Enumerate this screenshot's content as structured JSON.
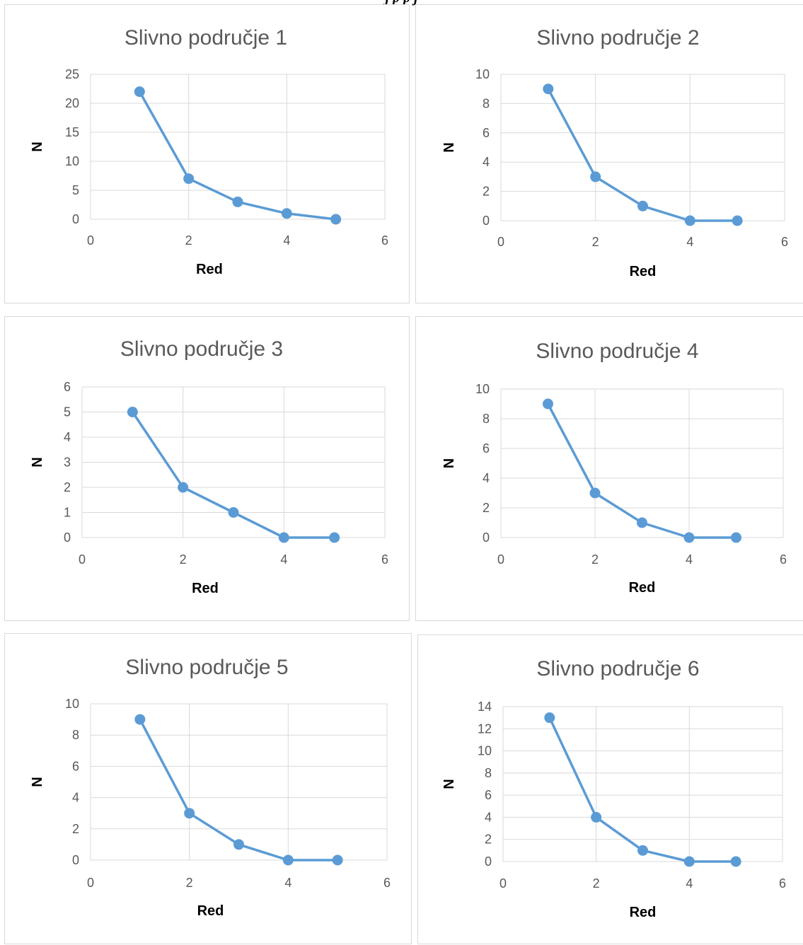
{
  "figure": {
    "caption_fragment": "j       p               p     j"
  },
  "theme": {
    "series_color": "#5b9bd5",
    "grid_color": "#d9d9d9",
    "text_color": "#595959",
    "panel_border_color": "#d9d9d9"
  },
  "chart_data": [
    {
      "type": "scatter",
      "title": "Slivno područje 1",
      "xlabel": "Red",
      "ylabel": "N",
      "x": [
        1,
        2,
        3,
        4,
        5
      ],
      "series": [
        {
          "values": [
            22,
            7,
            3,
            1,
            0
          ]
        }
      ],
      "xlim": [
        0,
        6
      ],
      "ylim": [
        0,
        25
      ],
      "xticks": [
        0,
        2,
        4,
        6
      ],
      "yticks": [
        0,
        5,
        10,
        15,
        20,
        25
      ],
      "grid": true,
      "lines": true,
      "markers": true
    },
    {
      "type": "scatter",
      "title": "Slivno područje 2",
      "xlabel": "Red",
      "ylabel": "N",
      "x": [
        1,
        2,
        3,
        4,
        5
      ],
      "series": [
        {
          "values": [
            9,
            3,
            1,
            0,
            0
          ]
        }
      ],
      "xlim": [
        0,
        6
      ],
      "ylim": [
        0,
        10
      ],
      "xticks": [
        0,
        2,
        4,
        6
      ],
      "yticks": [
        0,
        2,
        4,
        6,
        8,
        10
      ],
      "grid": true,
      "lines": true,
      "markers": true
    },
    {
      "type": "scatter",
      "title": "Slivno područje 3",
      "xlabel": "Red",
      "ylabel": "N",
      "x": [
        1,
        2,
        3,
        4,
        5
      ],
      "series": [
        {
          "values": [
            5,
            2,
            1,
            0,
            0
          ]
        }
      ],
      "xlim": [
        0,
        6
      ],
      "ylim": [
        0,
        6
      ],
      "xticks": [
        0,
        2,
        4,
        6
      ],
      "yticks": [
        0,
        1,
        2,
        3,
        4,
        5,
        6
      ],
      "grid": true,
      "lines": true,
      "markers": true
    },
    {
      "type": "scatter",
      "title": "Slivno područje 4",
      "xlabel": "Red",
      "ylabel": "N",
      "x": [
        1,
        2,
        3,
        4,
        5
      ],
      "series": [
        {
          "values": [
            9,
            3,
            1,
            0,
            0
          ]
        }
      ],
      "xlim": [
        0,
        6
      ],
      "ylim": [
        0,
        10
      ],
      "xticks": [
        0,
        2,
        4,
        6
      ],
      "yticks": [
        0,
        2,
        4,
        6,
        8,
        10
      ],
      "grid": true,
      "lines": true,
      "markers": true
    },
    {
      "type": "scatter",
      "title": "Slivno područje 5",
      "xlabel": "Red",
      "ylabel": "N",
      "x": [
        1,
        2,
        3,
        4,
        5
      ],
      "series": [
        {
          "values": [
            9,
            3,
            1,
            0,
            0
          ]
        }
      ],
      "xlim": [
        0,
        6
      ],
      "ylim": [
        0,
        10
      ],
      "xticks": [
        0,
        2,
        4,
        6
      ],
      "yticks": [
        0,
        2,
        4,
        6,
        8,
        10
      ],
      "grid": true,
      "lines": true,
      "markers": true
    },
    {
      "type": "scatter",
      "title": "Slivno područje 6",
      "xlabel": "Red",
      "ylabel": "N",
      "x": [
        1,
        2,
        3,
        4,
        5
      ],
      "series": [
        {
          "values": [
            13,
            4,
            1,
            0,
            0
          ]
        }
      ],
      "xlim": [
        0,
        6
      ],
      "ylim": [
        0,
        14
      ],
      "xticks": [
        0,
        2,
        4,
        6
      ],
      "yticks": [
        0,
        2,
        4,
        6,
        8,
        10,
        12,
        14
      ],
      "grid": true,
      "lines": true,
      "markers": true
    }
  ]
}
